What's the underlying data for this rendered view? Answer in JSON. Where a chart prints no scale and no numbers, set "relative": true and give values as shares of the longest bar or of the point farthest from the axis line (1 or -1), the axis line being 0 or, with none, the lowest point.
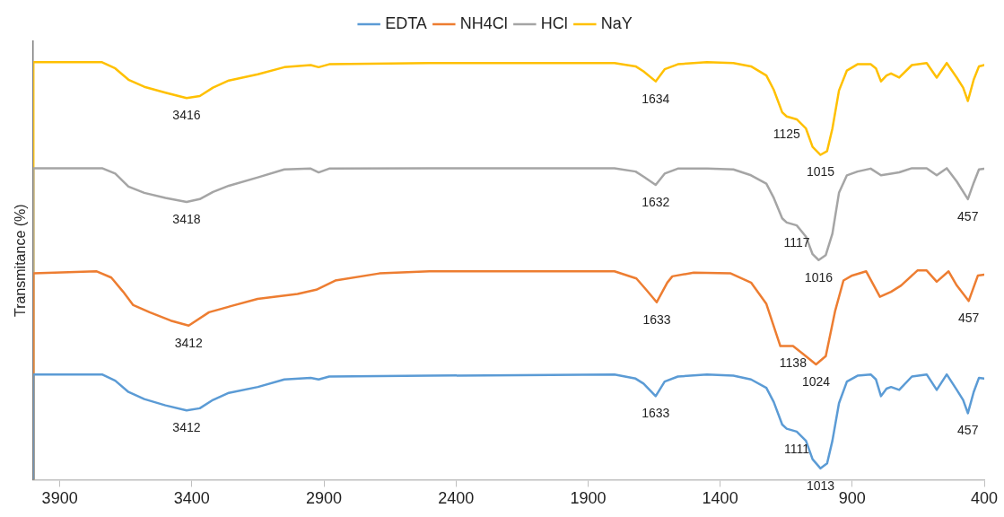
{
  "chart_data": {
    "type": "line",
    "ylabel": "Transmitance (%)",
    "relative": true,
    "xlim": [
      4000,
      400
    ],
    "xticks": [
      3900,
      3400,
      2900,
      2400,
      1900,
      1400,
      900,
      400
    ],
    "grid": false,
    "legend": "top",
    "marker": "none",
    "line_style": "solid",
    "series": [
      {
        "name": "EDTA",
        "color": "#5b9bd5",
        "x": [
          4000,
          4000,
          3740,
          3690,
          3640,
          3580,
          3500,
          3420,
          3370,
          3320,
          3260,
          3150,
          3050,
          2950,
          2920,
          2880,
          2500,
          1800,
          1720,
          1690,
          1644,
          1610,
          1560,
          1450,
          1350,
          1283,
          1225,
          1197,
          1165,
          1148,
          1110,
          1075,
          1050,
          1020,
          995,
          975,
          950,
          920,
          880,
          830,
          810,
          791,
          770,
          753,
          722,
          674,
          618,
          580,
          542,
          504,
          480,
          462,
          440,
          420,
          400
        ],
        "values": [
          0,
          0.252,
          0.252,
          0.237,
          0.21,
          0.193,
          0.178,
          0.166,
          0.171,
          0.191,
          0.208,
          0.222,
          0.24,
          0.244,
          0.24,
          0.247,
          0.249,
          0.252,
          0.242,
          0.23,
          0.2,
          0.235,
          0.247,
          0.252,
          0.249,
          0.24,
          0.22,
          0.186,
          0.132,
          0.122,
          0.115,
          0.093,
          0.049,
          0.027,
          0.039,
          0.093,
          0.183,
          0.235,
          0.249,
          0.252,
          0.24,
          0.2,
          0.218,
          0.222,
          0.215,
          0.247,
          0.252,
          0.215,
          0.252,
          0.215,
          0.191,
          0.159,
          0.21,
          0.244,
          0.242
        ]
      },
      {
        "name": "NH4Cl",
        "color": "#ed7d31",
        "x": [
          4000,
          4000,
          3760,
          3705,
          3660,
          3622,
          3560,
          3480,
          3412,
          3335,
          3250,
          3151,
          3000,
          2929,
          2857,
          2690,
          2500,
          1800,
          1717,
          1680,
          1640,
          1600,
          1581,
          1500,
          1360,
          1283,
          1225,
          1172,
          1124,
          1080,
          1037,
          1000,
          965,
          933,
          900,
          847,
          795,
          753,
          715,
          653,
          618,
          580,
          535,
          504,
          459,
          424,
          400
        ],
        "values": [
          0,
          0.494,
          0.499,
          0.484,
          0.45,
          0.418,
          0.401,
          0.381,
          0.369,
          0.401,
          0.416,
          0.433,
          0.445,
          0.455,
          0.477,
          0.494,
          0.499,
          0.499,
          0.482,
          0.455,
          0.425,
          0.472,
          0.487,
          0.496,
          0.494,
          0.472,
          0.421,
          0.32,
          0.32,
          0.298,
          0.276,
          0.296,
          0.403,
          0.477,
          0.489,
          0.499,
          0.438,
          0.45,
          0.465,
          0.501,
          0.501,
          0.474,
          0.499,
          0.465,
          0.428,
          0.489,
          0.491
        ]
      },
      {
        "name": "HCl",
        "color": "#a5a5a5",
        "x": [
          4000,
          4000,
          3740,
          3690,
          3640,
          3580,
          3500,
          3420,
          3370,
          3320,
          3260,
          3150,
          3050,
          2950,
          2920,
          2880,
          2500,
          1800,
          1720,
          1690,
          1644,
          1610,
          1560,
          1450,
          1350,
          1283,
          1225,
          1197,
          1165,
          1148,
          1110,
          1075,
          1050,
          1027,
          1000,
          975,
          950,
          920,
          880,
          830,
          791,
          753,
          722,
          674,
          618,
          580,
          542,
          504,
          462,
          440,
          420,
          400
        ],
        "values": [
          0,
          0.746,
          0.746,
          0.733,
          0.702,
          0.687,
          0.675,
          0.665,
          0.672,
          0.689,
          0.704,
          0.724,
          0.743,
          0.745,
          0.736,
          0.745,
          0.746,
          0.746,
          0.738,
          0.726,
          0.706,
          0.733,
          0.745,
          0.745,
          0.743,
          0.729,
          0.709,
          0.675,
          0.626,
          0.616,
          0.609,
          0.582,
          0.54,
          0.526,
          0.538,
          0.589,
          0.687,
          0.729,
          0.738,
          0.745,
          0.729,
          0.733,
          0.736,
          0.746,
          0.746,
          0.729,
          0.746,
          0.714,
          0.672,
          0.711,
          0.743,
          0.745
        ]
      },
      {
        "name": "NaY",
        "color": "#ffc000",
        "x": [
          4000,
          4000,
          3740,
          3690,
          3640,
          3580,
          3500,
          3420,
          3370,
          3320,
          3260,
          3150,
          3050,
          2950,
          2920,
          2880,
          2500,
          1800,
          1720,
          1690,
          1644,
          1610,
          1560,
          1450,
          1350,
          1283,
          1225,
          1197,
          1165,
          1148,
          1110,
          1075,
          1050,
          1020,
          995,
          975,
          950,
          920,
          880,
          830,
          810,
          791,
          770,
          753,
          722,
          674,
          618,
          580,
          542,
          504,
          480,
          462,
          440,
          420,
          400
        ],
        "values": [
          0,
          1.0,
          1.0,
          0.985,
          0.958,
          0.941,
          0.927,
          0.914,
          0.919,
          0.939,
          0.956,
          0.971,
          0.988,
          0.993,
          0.988,
          0.995,
          0.998,
          0.998,
          0.99,
          0.978,
          0.954,
          0.983,
          0.995,
          1.0,
          0.998,
          0.99,
          0.968,
          0.934,
          0.88,
          0.87,
          0.863,
          0.841,
          0.797,
          0.778,
          0.787,
          0.841,
          0.932,
          0.98,
          0.995,
          0.995,
          0.985,
          0.954,
          0.968,
          0.973,
          0.963,
          0.993,
          0.998,
          0.963,
          0.998,
          0.963,
          0.939,
          0.907,
          0.958,
          0.99,
          0.993
        ]
      }
    ],
    "annotations": [
      {
        "text": "3416",
        "x": 3420,
        "y": 0.914
      },
      {
        "text": "1634",
        "x": 1644,
        "y": 0.954
      },
      {
        "text": "1125",
        "x": 1148,
        "y": 0.87
      },
      {
        "text": "1015",
        "x": 1020,
        "y": 0.778
      },
      {
        "text": "3418",
        "x": 3420,
        "y": 0.665
      },
      {
        "text": "1632",
        "x": 1644,
        "y": 0.706
      },
      {
        "text": "1117",
        "x": 1110,
        "y": 0.609
      },
      {
        "text": "1016",
        "x": 1027,
        "y": 0.526
      },
      {
        "text": "457",
        "x": 462,
        "y": 0.672
      },
      {
        "text": "3412",
        "x": 3412,
        "y": 0.369
      },
      {
        "text": "1633",
        "x": 1640,
        "y": 0.425
      },
      {
        "text": "1138",
        "x": 1124,
        "y": 0.32
      },
      {
        "text": "1024",
        "x": 1037,
        "y": 0.276
      },
      {
        "text": "457",
        "x": 459,
        "y": 0.428
      },
      {
        "text": "3412",
        "x": 3420,
        "y": 0.166
      },
      {
        "text": "1633",
        "x": 1644,
        "y": 0.2
      },
      {
        "text": "1111",
        "x": 1110,
        "y": 0.115
      },
      {
        "text": "457",
        "x": 462,
        "y": 0.159
      },
      {
        "text": "1013",
        "x": 1020,
        "y": 0.027
      }
    ]
  }
}
